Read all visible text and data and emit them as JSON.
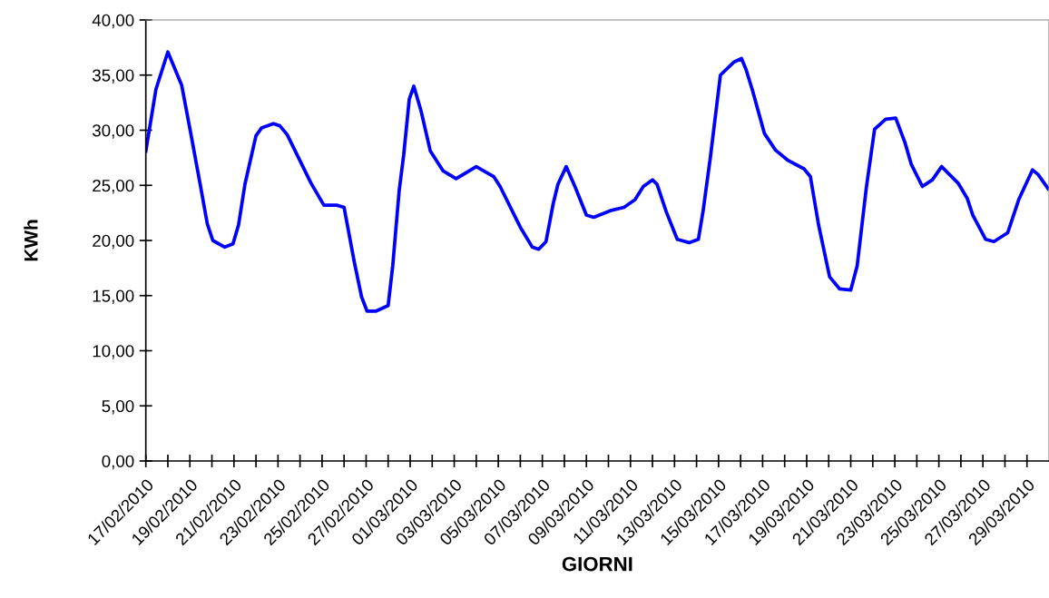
{
  "chart_data": {
    "type": "line",
    "xlabel": "GIORNI",
    "ylabel": "KWh",
    "series": [
      {
        "color": "#0000ff",
        "x": [
          "2010-02-17T00:00",
          "2010-02-17T11:00",
          "2010-02-18T00:00",
          "2010-02-18T15:00",
          "2010-02-19T01:00",
          "2010-02-19T11:00",
          "2010-02-19T19:00",
          "2010-02-20T01:00",
          "2010-02-20T14:00",
          "2010-02-20T23:00",
          "2010-02-21T05:00",
          "2010-02-21T12:00",
          "2010-02-22T00:00",
          "2010-02-22T06:00",
          "2010-02-22T19:00",
          "2010-02-23T02:00",
          "2010-02-23T10:00",
          "2010-02-24T12:00",
          "2010-02-25T02:00",
          "2010-02-25T16:00",
          "2010-02-26T00:00",
          "2010-02-26T11:00",
          "2010-02-26T19:00",
          "2010-02-27T01:00",
          "2010-02-27T11:00",
          "2010-02-28T00:00",
          "2010-02-28T05:00",
          "2010-02-28T12:00",
          "2010-02-28T17:00",
          "2010-02-28T23:00",
          "2010-03-01T04:00",
          "2010-03-01T12:00",
          "2010-03-01T22:00",
          "2010-03-02T12:00",
          "2010-03-03T02:00",
          "2010-03-04T00:00",
          "2010-03-04T19:00",
          "2010-03-05T02:00",
          "2010-03-06T00:00",
          "2010-03-06T13:00",
          "2010-03-06T20:00",
          "2010-03-07T04:00",
          "2010-03-07T12:00",
          "2010-03-07T17:00",
          "2010-03-08T02:00",
          "2010-03-08T12:00",
          "2010-03-09T00:00",
          "2010-03-09T08:00",
          "2010-03-10T02:00",
          "2010-03-10T17:00",
          "2010-03-11T05:00",
          "2010-03-11T14:00",
          "2010-03-12T00:00",
          "2010-03-12T05:00",
          "2010-03-12T15:00",
          "2010-03-13T03:00",
          "2010-03-13T16:00",
          "2010-03-14T02:00",
          "2010-03-14T07:00",
          "2010-03-14T15:00",
          "2010-03-15T02:00",
          "2010-03-15T17:00",
          "2010-03-16T01:00",
          "2010-03-16T06:00",
          "2010-03-16T13:00",
          "2010-03-17T02:00",
          "2010-03-17T14:00",
          "2010-03-18T03:00",
          "2010-03-18T21:00",
          "2010-03-19T04:00",
          "2010-03-19T13:00",
          "2010-03-20T01:00",
          "2010-03-20T12:00",
          "2010-03-21T00:00",
          "2010-03-21T07:00",
          "2010-03-21T17:00",
          "2010-03-22T02:00",
          "2010-03-22T14:00",
          "2010-03-23T01:00",
          "2010-03-23T11:00",
          "2010-03-23T18:00",
          "2010-03-24T06:00",
          "2010-03-24T17:00",
          "2010-03-25T03:00",
          "2010-03-25T21:00",
          "2010-03-26T07:00",
          "2010-03-26T13:00",
          "2010-03-27T03:00",
          "2010-03-27T12:00",
          "2010-03-28T03:00",
          "2010-03-28T15:00",
          "2010-03-29T06:00",
          "2010-03-29T12:00",
          "2010-03-29T23:00"
        ],
        "values": [
          28.1,
          33.7,
          37.1,
          34.1,
          29.7,
          25.2,
          21.5,
          20.0,
          19.4,
          19.7,
          21.4,
          25.1,
          29.5,
          30.2,
          30.6,
          30.4,
          29.6,
          25.2,
          23.2,
          23.2,
          23.0,
          18.1,
          14.9,
          13.6,
          13.6,
          14.1,
          17.7,
          24.5,
          27.8,
          32.8,
          34.0,
          31.7,
          28.1,
          26.3,
          25.6,
          26.7,
          25.8,
          24.9,
          21.2,
          19.4,
          19.2,
          19.9,
          23.4,
          25.1,
          26.7,
          24.8,
          22.3,
          22.1,
          22.7,
          23.0,
          23.7,
          24.9,
          25.5,
          25.1,
          22.6,
          20.1,
          19.8,
          20.1,
          22.6,
          27.5,
          35.0,
          36.2,
          36.5,
          35.5,
          33.6,
          29.7,
          28.2,
          27.3,
          26.5,
          25.8,
          21.4,
          16.7,
          15.6,
          15.5,
          17.7,
          24.8,
          30.1,
          31.0,
          31.1,
          28.9,
          26.9,
          24.9,
          25.5,
          26.7,
          25.2,
          23.8,
          22.3,
          20.1,
          19.9,
          20.7,
          23.7,
          26.4,
          26.0,
          24.7
        ]
      }
    ],
    "xlim": [
      "2010-02-17",
      "2010-03-30"
    ],
    "xticks": [
      {
        "value": "2010-02-17",
        "label": "17/02/2010"
      },
      {
        "value": "2010-02-18",
        "label": null
      },
      {
        "value": "2010-02-19",
        "label": "19/02/2010"
      },
      {
        "value": "2010-02-20",
        "label": null
      },
      {
        "value": "2010-02-21",
        "label": "21/02/2010"
      },
      {
        "value": "2010-02-22",
        "label": null
      },
      {
        "value": "2010-02-23",
        "label": "23/02/2010"
      },
      {
        "value": "2010-02-24",
        "label": null
      },
      {
        "value": "2010-02-25",
        "label": "25/02/2010"
      },
      {
        "value": "2010-02-26",
        "label": null
      },
      {
        "value": "2010-02-27",
        "label": "27/02/2010"
      },
      {
        "value": "2010-02-28",
        "label": null
      },
      {
        "value": "2010-03-01",
        "label": "01/03/2010"
      },
      {
        "value": "2010-03-02",
        "label": null
      },
      {
        "value": "2010-03-03",
        "label": "03/03/2010"
      },
      {
        "value": "2010-03-04",
        "label": null
      },
      {
        "value": "2010-03-05",
        "label": "05/03/2010"
      },
      {
        "value": "2010-03-06",
        "label": null
      },
      {
        "value": "2010-03-07",
        "label": "07/03/2010"
      },
      {
        "value": "2010-03-08",
        "label": null
      },
      {
        "value": "2010-03-09",
        "label": "09/03/2010"
      },
      {
        "value": "2010-03-10",
        "label": null
      },
      {
        "value": "2010-03-11",
        "label": "11/03/2010"
      },
      {
        "value": "2010-03-12",
        "label": null
      },
      {
        "value": "2010-03-13",
        "label": "13/03/2010"
      },
      {
        "value": "2010-03-14",
        "label": null
      },
      {
        "value": "2010-03-15",
        "label": "15/03/2010"
      },
      {
        "value": "2010-03-16",
        "label": null
      },
      {
        "value": "2010-03-17",
        "label": "17/03/2010"
      },
      {
        "value": "2010-03-18",
        "label": null
      },
      {
        "value": "2010-03-19",
        "label": "19/03/2010"
      },
      {
        "value": "2010-03-20",
        "label": null
      },
      {
        "value": "2010-03-21",
        "label": "21/03/2010"
      },
      {
        "value": "2010-03-22",
        "label": null
      },
      {
        "value": "2010-03-23",
        "label": "23/03/2010"
      },
      {
        "value": "2010-03-24",
        "label": null
      },
      {
        "value": "2010-03-25",
        "label": "25/03/2010"
      },
      {
        "value": "2010-03-26",
        "label": null
      },
      {
        "value": "2010-03-27",
        "label": "27/03/2010"
      },
      {
        "value": "2010-03-28",
        "label": null
      },
      {
        "value": "2010-03-29",
        "label": "29/03/2010"
      }
    ],
    "ylim": [
      0,
      40
    ],
    "yticks": [
      {
        "value": 0,
        "label": "0,00"
      },
      {
        "value": 5,
        "label": "5,00"
      },
      {
        "value": 10,
        "label": "10,00"
      },
      {
        "value": 15,
        "label": "15,00"
      },
      {
        "value": 20,
        "label": "20,00"
      },
      {
        "value": 25,
        "label": "25,00"
      },
      {
        "value": 30,
        "label": "30,00"
      },
      {
        "value": 35,
        "label": "35,00"
      },
      {
        "value": 40,
        "label": "40,00"
      }
    ],
    "grid": false,
    "marker": "none",
    "line_style": "solid"
  }
}
